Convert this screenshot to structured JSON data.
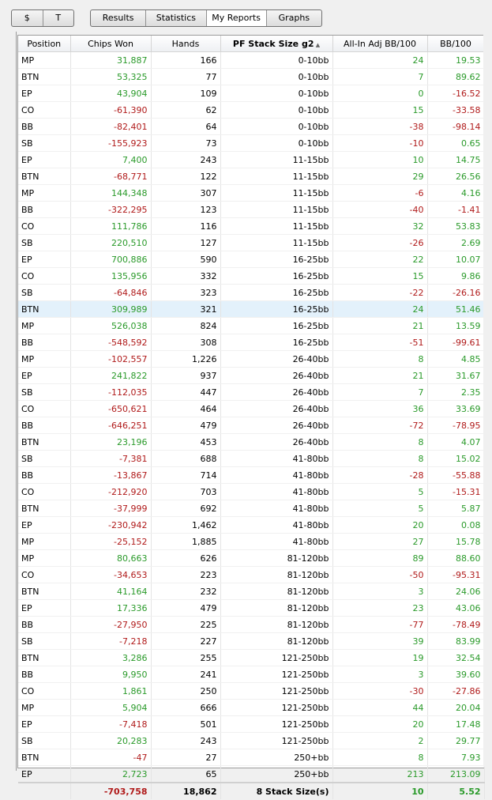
{
  "toolbar": {
    "toggles": [
      "$",
      "T"
    ],
    "tabs": [
      "Results",
      "Statistics",
      "My Reports",
      "Graphs"
    ]
  },
  "table": {
    "columns": [
      "Position",
      "Chips Won",
      "Hands",
      "PF Stack Size g2",
      "All-In Adj BB/100",
      "BB/100"
    ],
    "sort_column": 3,
    "selected_row": 15,
    "rows": [
      [
        "MP",
        "31,887",
        "166",
        "0-10bb",
        "24",
        "19.53"
      ],
      [
        "BTN",
        "53,325",
        "77",
        "0-10bb",
        "7",
        "89.62"
      ],
      [
        "EP",
        "43,904",
        "109",
        "0-10bb",
        "0",
        "-16.52"
      ],
      [
        "CO",
        "-61,390",
        "62",
        "0-10bb",
        "15",
        "-33.58"
      ],
      [
        "BB",
        "-82,401",
        "64",
        "0-10bb",
        "-38",
        "-98.14"
      ],
      [
        "SB",
        "-155,923",
        "73",
        "0-10bb",
        "-10",
        "0.65"
      ],
      [
        "EP",
        "7,400",
        "243",
        "11-15bb",
        "10",
        "14.75"
      ],
      [
        "BTN",
        "-68,771",
        "122",
        "11-15bb",
        "29",
        "26.56"
      ],
      [
        "MP",
        "144,348",
        "307",
        "11-15bb",
        "-6",
        "4.16"
      ],
      [
        "BB",
        "-322,295",
        "123",
        "11-15bb",
        "-40",
        "-1.41"
      ],
      [
        "CO",
        "111,786",
        "116",
        "11-15bb",
        "32",
        "53.83"
      ],
      [
        "SB",
        "220,510",
        "127",
        "11-15bb",
        "-26",
        "2.69"
      ],
      [
        "EP",
        "700,886",
        "590",
        "16-25bb",
        "22",
        "10.07"
      ],
      [
        "CO",
        "135,956",
        "332",
        "16-25bb",
        "15",
        "9.86"
      ],
      [
        "SB",
        "-64,846",
        "323",
        "16-25bb",
        "-22",
        "-26.16"
      ],
      [
        "BTN",
        "309,989",
        "321",
        "16-25bb",
        "24",
        "51.46"
      ],
      [
        "MP",
        "526,038",
        "824",
        "16-25bb",
        "21",
        "13.59"
      ],
      [
        "BB",
        "-548,592",
        "308",
        "16-25bb",
        "-51",
        "-99.61"
      ],
      [
        "MP",
        "-102,557",
        "1,226",
        "26-40bb",
        "8",
        "4.85"
      ],
      [
        "EP",
        "241,822",
        "937",
        "26-40bb",
        "21",
        "31.67"
      ],
      [
        "SB",
        "-112,035",
        "447",
        "26-40bb",
        "7",
        "2.35"
      ],
      [
        "CO",
        "-650,621",
        "464",
        "26-40bb",
        "36",
        "33.69"
      ],
      [
        "BB",
        "-646,251",
        "479",
        "26-40bb",
        "-72",
        "-78.95"
      ],
      [
        "BTN",
        "23,196",
        "453",
        "26-40bb",
        "8",
        "4.07"
      ],
      [
        "SB",
        "-7,381",
        "688",
        "41-80bb",
        "8",
        "15.02"
      ],
      [
        "BB",
        "-13,867",
        "714",
        "41-80bb",
        "-28",
        "-55.88"
      ],
      [
        "CO",
        "-212,920",
        "703",
        "41-80bb",
        "5",
        "-15.31"
      ],
      [
        "BTN",
        "-37,999",
        "692",
        "41-80bb",
        "5",
        "5.87"
      ],
      [
        "EP",
        "-230,942",
        "1,462",
        "41-80bb",
        "20",
        "0.08"
      ],
      [
        "MP",
        "-25,152",
        "1,885",
        "41-80bb",
        "27",
        "15.78"
      ],
      [
        "MP",
        "80,663",
        "626",
        "81-120bb",
        "89",
        "88.60"
      ],
      [
        "CO",
        "-34,653",
        "223",
        "81-120bb",
        "-50",
        "-95.31"
      ],
      [
        "BTN",
        "41,164",
        "232",
        "81-120bb",
        "3",
        "24.06"
      ],
      [
        "EP",
        "17,336",
        "479",
        "81-120bb",
        "23",
        "43.06"
      ],
      [
        "BB",
        "-27,950",
        "225",
        "81-120bb",
        "-77",
        "-78.49"
      ],
      [
        "SB",
        "-7,218",
        "227",
        "81-120bb",
        "39",
        "83.99"
      ],
      [
        "BTN",
        "3,286",
        "255",
        "121-250bb",
        "19",
        "32.54"
      ],
      [
        "BB",
        "9,950",
        "241",
        "121-250bb",
        "3",
        "39.60"
      ],
      [
        "CO",
        "1,861",
        "250",
        "121-250bb",
        "-30",
        "-27.86"
      ],
      [
        "MP",
        "5,904",
        "666",
        "121-250bb",
        "44",
        "20.04"
      ],
      [
        "EP",
        "-7,418",
        "501",
        "121-250bb",
        "20",
        "17.48"
      ],
      [
        "SB",
        "20,283",
        "243",
        "121-250bb",
        "2",
        "29.77"
      ],
      [
        "BTN",
        "-47",
        "27",
        "250+bb",
        "8",
        "7.93"
      ],
      [
        "EP",
        "2,723",
        "65",
        "250+bb",
        "213",
        "213.09"
      ]
    ],
    "totals": [
      "-703,758",
      "18,862",
      "8 Stack Size(s)",
      "10",
      "5.52"
    ]
  }
}
